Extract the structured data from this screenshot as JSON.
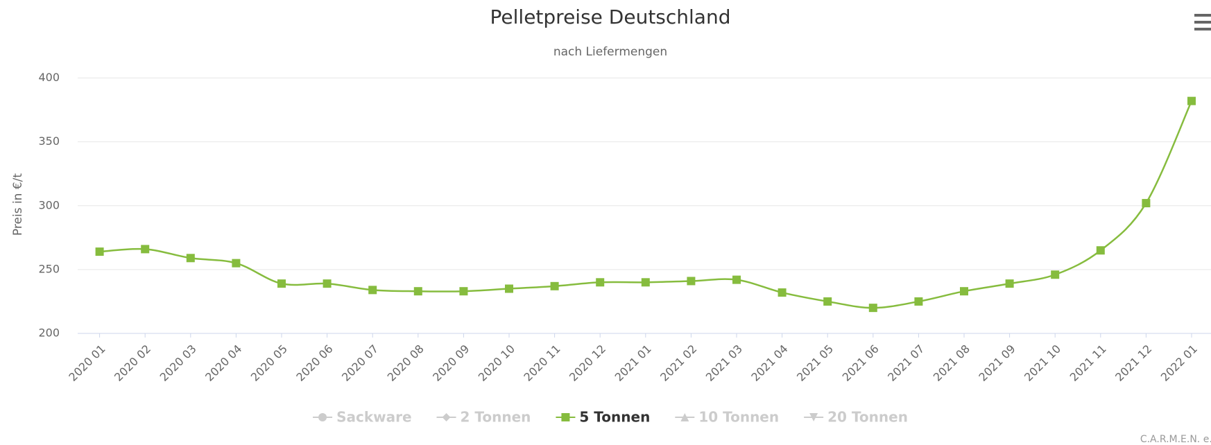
{
  "chart_data": {
    "type": "line",
    "title": "Pelletpreise Deutschland",
    "subtitle": "nach Liefermengen",
    "y_axis_label": "Preis in €/t",
    "credits": "C.A.R.M.E.N. e.V.",
    "categories": [
      "2020 01",
      "2020 02",
      "2020 03",
      "2020 04",
      "2020 05",
      "2020 06",
      "2020 07",
      "2020 08",
      "2020 09",
      "2020 10",
      "2020 11",
      "2020 12",
      "2021 01",
      "2021 02",
      "2021 03",
      "2021 04",
      "2021 05",
      "2021 06",
      "2021 07",
      "2021 08",
      "2021 09",
      "2021 10",
      "2021 11",
      "2021 12",
      "2022 01"
    ],
    "series": [
      {
        "name": "Sackware",
        "visible": false,
        "symbol": "circle"
      },
      {
        "name": "2 Tonnen",
        "visible": false,
        "symbol": "diamond"
      },
      {
        "name": "5 Tonnen",
        "visible": true,
        "symbol": "square",
        "color": "#86bc3e",
        "values": [
          264,
          266,
          259,
          255,
          239,
          239,
          234,
          233,
          233,
          235,
          237,
          240,
          240,
          241,
          242,
          232,
          225,
          220,
          225,
          233,
          239,
          246,
          265,
          302,
          382
        ]
      },
      {
        "name": "10 Tonnen",
        "visible": false,
        "symbol": "triangle"
      },
      {
        "name": "20 Tonnen",
        "visible": false,
        "symbol": "triangle-down"
      }
    ],
    "ylim": [
      200,
      400
    ],
    "yticks": [
      200,
      250,
      300,
      350,
      400
    ],
    "grid": true,
    "legend": "bottom"
  }
}
